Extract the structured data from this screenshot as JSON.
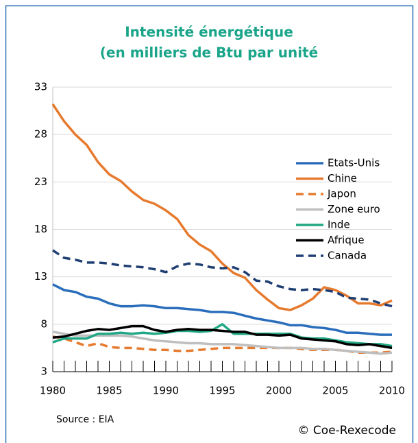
{
  "chart_data": {
    "type": "line",
    "title": [
      "Intensité énergétique",
      "(en milliers de Btu par unité"
    ],
    "source": "Source : EIA",
    "credit": "© Coe-Rexecode",
    "x": [
      1980,
      1981,
      1982,
      1983,
      1984,
      1985,
      1986,
      1987,
      1988,
      1989,
      1990,
      1991,
      1992,
      1993,
      1994,
      1995,
      1996,
      1997,
      1998,
      1999,
      2000,
      2001,
      2002,
      2003,
      2004,
      2005,
      2006,
      2007,
      2008,
      2009,
      2010
    ],
    "xlim": [
      1980,
      2010
    ],
    "xticks": [
      1980,
      1985,
      1990,
      1995,
      2000,
      2005,
      2010
    ],
    "ylim": [
      3,
      33
    ],
    "yticks": [
      3,
      8,
      13,
      18,
      23,
      28,
      33
    ],
    "grid": true,
    "legend": "right",
    "series": [
      {
        "name": "Etats-Unis",
        "color": "#2a6ebb",
        "dashed": false,
        "values": [
          12.2,
          11.6,
          11.4,
          10.9,
          10.7,
          10.2,
          9.9,
          9.9,
          10.0,
          9.9,
          9.7,
          9.7,
          9.6,
          9.5,
          9.3,
          9.3,
          9.2,
          8.9,
          8.6,
          8.4,
          8.2,
          7.9,
          7.9,
          7.7,
          7.6,
          7.4,
          7.1,
          7.1,
          7.0,
          6.9,
          6.9
        ]
      },
      {
        "name": "Chine",
        "color": "#e67a2e",
        "dashed": false,
        "values": [
          31.2,
          29.4,
          28.0,
          26.9,
          25.1,
          23.8,
          23.1,
          22.0,
          21.1,
          20.7,
          20.0,
          19.1,
          17.4,
          16.4,
          15.7,
          14.4,
          13.4,
          12.9,
          11.6,
          10.6,
          9.7,
          9.5,
          10.0,
          10.7,
          11.9,
          11.6,
          11.0,
          10.2,
          10.2,
          10.0,
          10.5
        ]
      },
      {
        "name": "Japon",
        "color": "#e67a2e",
        "dashed": true,
        "values": [
          6.7,
          6.5,
          6.1,
          5.7,
          6.0,
          5.6,
          5.5,
          5.5,
          5.4,
          5.3,
          5.3,
          5.2,
          5.2,
          5.3,
          5.4,
          5.5,
          5.5,
          5.5,
          5.5,
          5.5,
          5.5,
          5.5,
          5.4,
          5.3,
          5.3,
          5.3,
          5.2,
          5.0,
          5.0,
          5.0,
          5.1
        ]
      },
      {
        "name": "Zone euro",
        "color": "#bfbfbf",
        "dashed": false,
        "values": [
          7.2,
          7.0,
          6.8,
          6.8,
          6.8,
          6.8,
          6.8,
          6.7,
          6.5,
          6.3,
          6.2,
          6.1,
          6.0,
          6.0,
          5.9,
          5.9,
          5.9,
          5.8,
          5.7,
          5.6,
          5.5,
          5.5,
          5.5,
          5.4,
          5.4,
          5.3,
          5.2,
          5.1,
          5.0,
          4.9,
          5.0
        ]
      },
      {
        "name": "Inde",
        "color": "#22a884",
        "dashed": false,
        "values": [
          6.1,
          6.5,
          6.5,
          6.5,
          7.0,
          7.0,
          7.1,
          7.0,
          7.1,
          7.0,
          7.1,
          7.3,
          7.3,
          7.2,
          7.3,
          8.0,
          7.0,
          7.0,
          7.0,
          7.0,
          7.0,
          7.0,
          6.6,
          6.5,
          6.5,
          6.3,
          6.1,
          6.0,
          5.9,
          5.9,
          5.7
        ]
      },
      {
        "name": "Afrique",
        "color": "#000000",
        "dashed": false,
        "values": [
          6.6,
          6.7,
          7.0,
          7.3,
          7.5,
          7.4,
          7.6,
          7.8,
          7.8,
          7.4,
          7.2,
          7.4,
          7.5,
          7.4,
          7.4,
          7.3,
          7.2,
          7.2,
          6.9,
          6.9,
          6.8,
          6.9,
          6.5,
          6.4,
          6.3,
          6.2,
          5.9,
          5.8,
          5.9,
          5.7,
          5.5
        ]
      },
      {
        "name": "Canada",
        "color": "#1f3f73",
        "dashed": true,
        "values": [
          15.8,
          15.0,
          14.8,
          14.5,
          14.5,
          14.4,
          14.2,
          14.1,
          14.0,
          13.8,
          13.5,
          14.1,
          14.4,
          14.3,
          14.0,
          13.9,
          14.0,
          13.5,
          12.6,
          12.5,
          12.0,
          11.7,
          11.6,
          11.7,
          11.6,
          11.4,
          10.8,
          10.7,
          10.6,
          10.2,
          9.9
        ]
      }
    ]
  }
}
